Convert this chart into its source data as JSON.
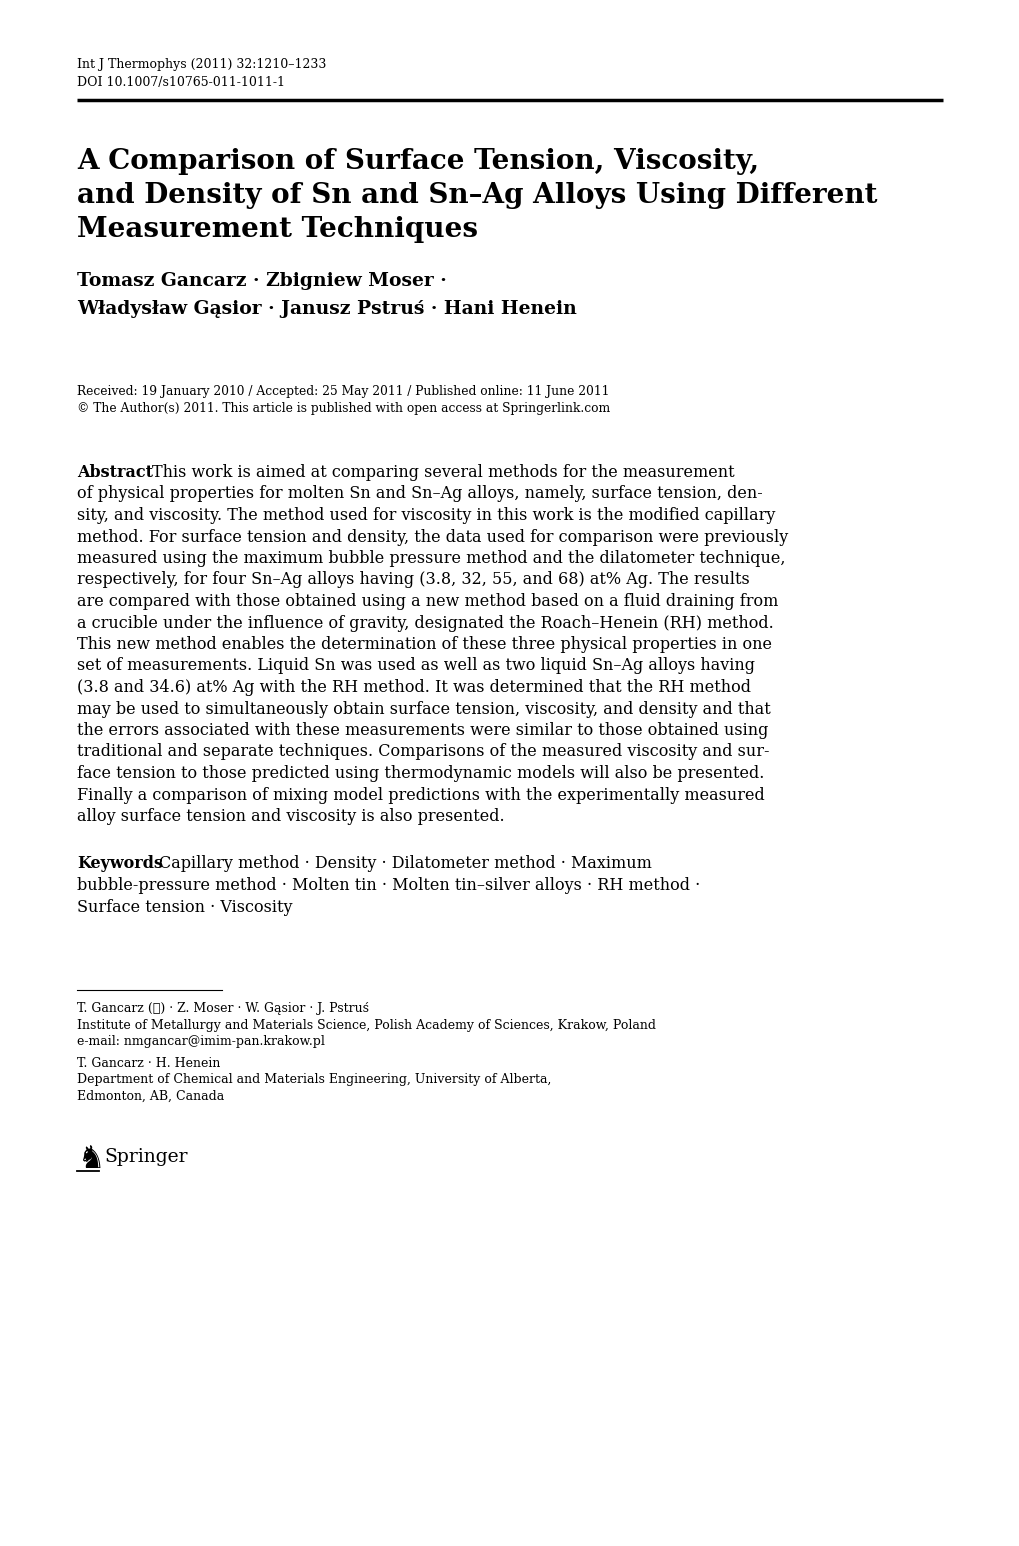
{
  "journal_line1": "Int J Thermophys (2011) 32:1210–1233",
  "journal_line2": "DOI 10.1007/s10765-011-1011-1",
  "title_line1": "A Comparison of Surface Tension, Viscosity,",
  "title_line2": "and Density of Sn and Sn–Ag Alloys Using Different",
  "title_line3": "Measurement Techniques",
  "authors_line1": "Tomasz Gancarz · Zbigniew Moser ·",
  "authors_line2": "Władysław Gąsior · Janusz Pstruś · Hani Henein",
  "received": "Received: 19 January 2010 / Accepted: 25 May 2011 / Published online: 11 June 2011",
  "copyright": "© The Author(s) 2011. This article is published with open access at Springerlink.com",
  "abstract_header": "Abstract",
  "abstract_first": "    This work is aimed at comparing several methods for the measurement",
  "abstract_lines": [
    "of physical properties for molten Sn and Sn–Ag alloys, namely, surface tension, den-",
    "sity, and viscosity. The method used for viscosity in this work is the modified capillary",
    "method. For surface tension and density, the data used for comparison were previously",
    "measured using the maximum bubble pressure method and the dilatometer technique,",
    "respectively, for four Sn–Ag alloys having (3.8, 32, 55, and 68) at% Ag. The results",
    "are compared with those obtained using a new method based on a fluid draining from",
    "a crucible under the influence of gravity, designated the Roach–Henein (RH) method.",
    "This new method enables the determination of these three physical properties in one",
    "set of measurements. Liquid Sn was used as well as two liquid Sn–Ag alloys having",
    "(3.8 and 34.6) at% Ag with the RH method. It was determined that the RH method",
    "may be used to simultaneously obtain surface tension, viscosity, and density and that",
    "the errors associated with these measurements were similar to those obtained using",
    "traditional and separate techniques. Comparisons of the measured viscosity and sur-",
    "face tension to those predicted using thermodynamic models will also be presented.",
    "Finally a comparison of mixing model predictions with the experimentally measured",
    "alloy surface tension and viscosity is also presented."
  ],
  "keywords_header": "Keywords",
  "keywords_first": "    Capillary method · Density · Dilatometer method · Maximum",
  "keywords_lines": [
    "bubble-pressure method · Molten tin · Molten tin–silver alloys · RH method ·",
    "Surface tension · Viscosity"
  ],
  "fn1_line1": "T. Gancarz (✉) · Z. Moser · W. Gąsior · J. Pstruś",
  "fn1_line2": "Institute of Metallurgy and Materials Science, Polish Academy of Sciences, Krakow, Poland",
  "fn1_line3": "e-mail: nmgancar@imim-pan.krakow.pl",
  "fn2_line1": "T. Gancarz · H. Henein",
  "fn2_line2": "Department of Chemical and Materials Engineering, University of Alberta,",
  "fn2_line3": "Edmonton, AB, Canada",
  "springer_label": "Springer"
}
